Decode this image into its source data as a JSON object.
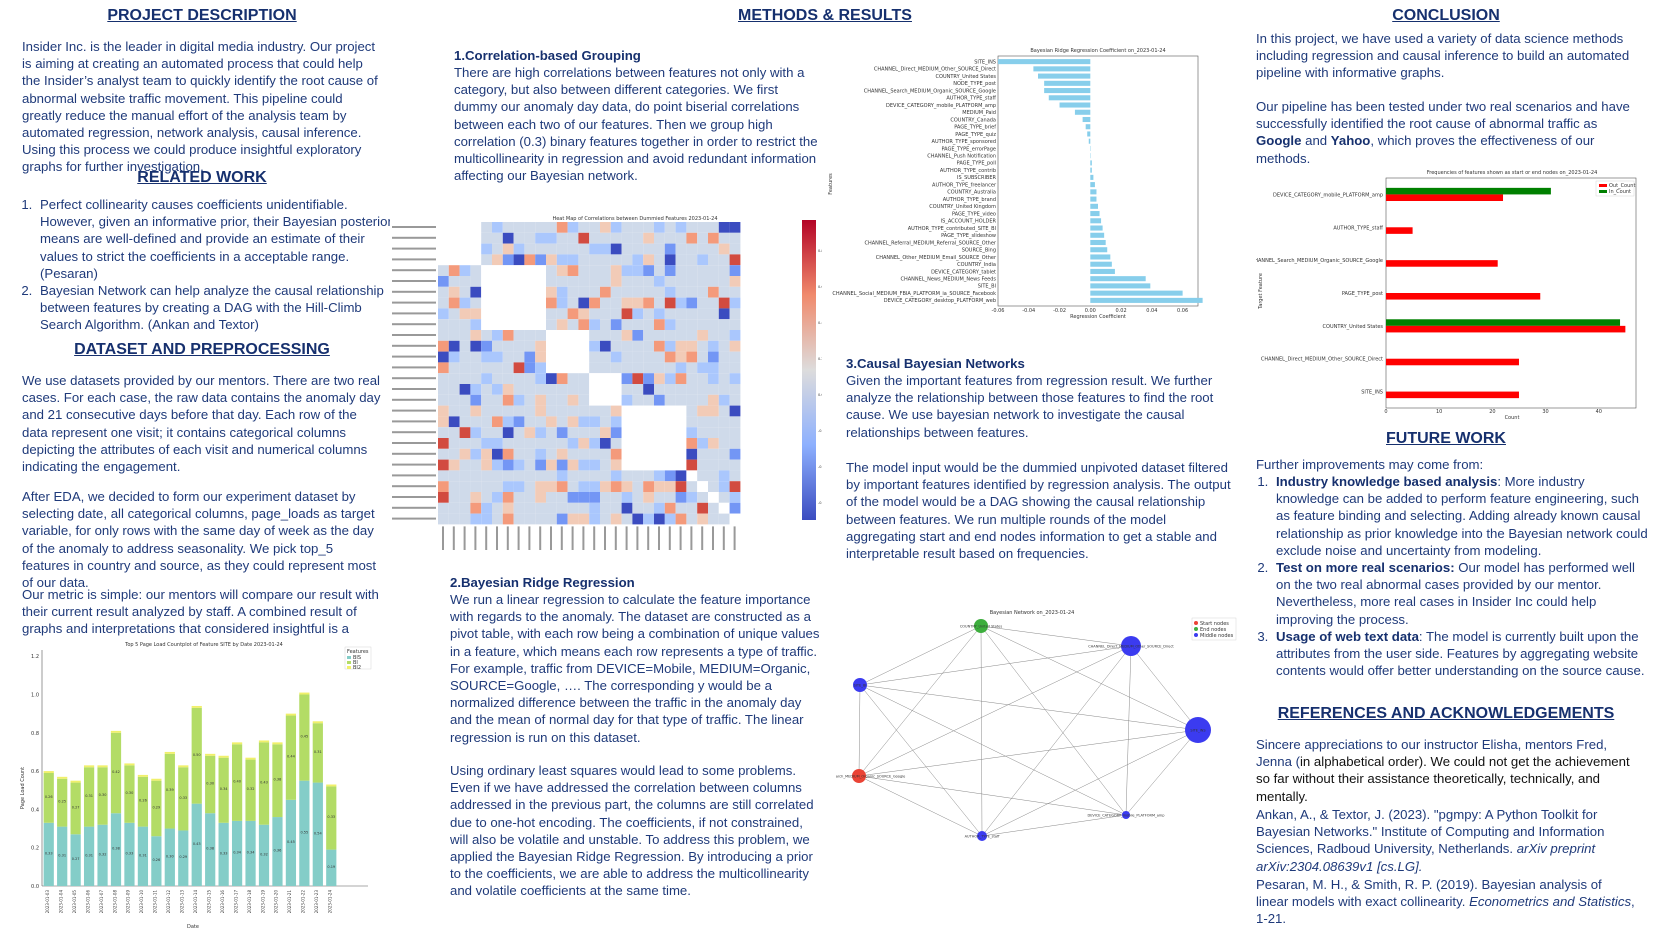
{
  "sections": {
    "project_title": "PROJECT DESCRIPTION",
    "project_text": "Insider Inc. is the leader in digital media industry. Our project is aiming at creating an automated process that could help the Insider’s analyst team to quickly identify the root cause of abnormal website traffic movement. This pipeline could greatly reduce the manual effort of the analysis team by automated regression, network analysis, causal inference. Using this process we could produce insightful exploratory graphs for further investigation.",
    "related_title": "RELATED WORK",
    "related_items": [
      "Perfect collinearity causes coefficients unidentifiable. However, given an informative prior, their Bayesian posterior means are well-defined and provide an estimate of their values to strict the coefficients in a acceptable range.(Pesaran)",
      "Bayesian Network can help analyze the causal relationship between features by creating a DAG with the Hill-Climb Search Algorithm. (Ankan and Textor)"
    ],
    "dataset_title": "DATASET AND PREPROCESSING",
    "dataset_p1": "We use datasets provided by our mentors. There are two real cases. For each case, the raw data contains the anomaly day and 21 consecutive days before that day. Each row of the data represent one visit; it contains categorical columns depicting the attributes of each visit and numerical columns indicating the engagement.",
    "dataset_p2": "After EDA, we decided to form our experiment dataset by selecting date, all categorical columns, page_loads as target variable, for only rows with the same day of week as the day of the anomaly to address seasonality. We pick top_5 features in country and source, as they could represent most of our data.",
    "dataset_p3": "Our metric is simple: our mentors will compare our result with their current result analyzed by staff. A combined result of graphs and interpretations that considered insightful is a success.",
    "methods_title": "METHODS & RESULTS",
    "m1_title": "1.Correlation-based Grouping",
    "m1_text": "There are high correlations between features not only with a category, but also between different categories. We first dummy our anomaly day data, do point biserial correlations between each two of our features. Then we group high correlation (0.3) binary features together in order to restrict the multicollinearity in regression and avoid redundant information affecting our Bayesian network.",
    "m2_title": "2.Bayesian Ridge Regression",
    "m2_p1": "We run a linear regression to calculate the feature importance with regards to the anomaly. The dataset are constructed as a pivot table, with each row being a combination of unique values in a feature, which means each row represents a type of traffic. For example, traffic from DEVICE=Mobile, MEDIUM=Organic, SOURCE=Google, …. The corresponding y would be a normalized difference between the traffic in the anomaly day and the mean of normal day for that type of traffic. The linear regression is run on this dataset.",
    "m2_p2": "Using ordinary least squares would lead to some problems. Even if we have addressed the correlation between columns addressed in the previous part, the columns are still correlated due to one-hot encoding. The coefficients, if not constrained, will also be volatile and unstable. To address this problem, we applied the Bayesian Ridge Regression. By introducing a prior to the coefficients, we are able to address the multicollinearity and volatile coefficients at the same time.",
    "m3_title": "3.Causal Bayesian Networks",
    "m3_p1": "Given the important features from regression result. We further analyze the relationship between those features to find the root cause. We use bayesian network to investigate the causal relationships between features.",
    "m3_p2": "The model input would be the dummied unpivoted dataset filtered by important features identified by regression analysis. The output of the model would be a DAG showing the causal relationship between features. We run multiple rounds of the model aggregating start and end nodes information to get a stable and interpretable result based on frequencies.",
    "conclusion_title": "CONCLUSION",
    "conclusion_p1": "In this project, we have used a variety of data science methods including regression and causal inference to build an automated pipeline with informative graphs.",
    "conclusion_p2a": "Our pipeline has been tested under two real scenarios and have successfully identified the root cause of abnormal traffic as",
    "conclusion_google": "Google",
    "conclusion_and": "and",
    "conclusion_yahoo": "Yahoo",
    "conclusion_p2b": ", which proves the effectiveness of our methods.",
    "future_title": "FUTURE WORK",
    "future_intro": "Further improvements may come from:",
    "future_items": [
      {
        "bold": "Industry knowledge based analysis",
        "text": ": More industry knowledge can be added to perform feature engineering, such as feature binding and selecting. Adding already known causal relationship as prior knowledge into the Bayesian network could exclude noise and uncertainty from modeling."
      },
      {
        "bold": "Test on more real scenarios:",
        "text": " Our model has performed well on the two real abnormal cases provided by our mentor. Nevertheless, more real cases in Insider Inc could help improving the process."
      },
      {
        "bold": "Usage of web text data",
        "text": ": The model is currently built upon the attributes from the user side. Features by aggregating website contents would offer better understanding on the source cause."
      }
    ],
    "refs_title": "REFERENCES AND ACKNOWLEDGEMENTS",
    "refs_ack_a": "Sincere appreciations to our instructor Elisha, mentors Fred, Jenna (",
    "refs_ack_b": "in alphabetical order). We could not get the achievement so far without their assistance theoretically, technically, and mentally.",
    "ref1a": "Ankan, A., & Textor, J. (2023). \"pgmpy: A Python Toolkit for Bayesian Networks.\" Institute of Computing and Information Sciences, Radboud University, Netherlands.",
    "ref1b": "arXiv preprint arXiv:2304.08639v1 [cs.LG].",
    "ref2a": "Pesaran, M. H., & Smith, R. P. (2019). Bayesian analysis of linear models with exact collinearity.",
    "ref2b": "Econometrics and Statistics",
    "ref2c": ", 1-21."
  },
  "chart_data": [
    {
      "type": "bar",
      "title": "Top 5 Page Load Countplot of Feature SITE by Date 2023-01-24",
      "xlabel": "Date",
      "ylabel": "Page Load Count",
      "stacked": true,
      "legend_title": "Features",
      "categories": [
        "2023-01-03",
        "2023-01-04",
        "2023-01-05",
        "2023-01-06",
        "2023-01-07",
        "2023-01-08",
        "2023-01-09",
        "2023-01-10",
        "2023-01-11",
        "2023-01-12",
        "2023-01-13",
        "2023-01-14",
        "2023-01-15",
        "2023-01-16",
        "2023-01-17",
        "2023-01-18",
        "2023-01-19",
        "2023-01-20",
        "2023-01-21",
        "2023-01-22",
        "2023-01-23",
        "2023-01-24"
      ],
      "series": [
        {
          "name": "BIS",
          "color": "#84cdc8",
          "values": [
            0.33,
            0.31,
            0.27,
            0.31,
            0.32,
            0.38,
            0.33,
            0.31,
            0.26,
            0.3,
            0.29,
            0.43,
            0.38,
            0.33,
            0.34,
            0.34,
            0.32,
            0.36,
            0.45,
            0.55,
            0.54,
            0.19
          ]
        },
        {
          "name": "BI",
          "color": "#b3dc66",
          "values": [
            0.26,
            0.25,
            0.27,
            0.31,
            0.3,
            0.42,
            0.3,
            0.26,
            0.29,
            0.39,
            0.33,
            0.5,
            0.3,
            0.34,
            0.4,
            0.32,
            0.43,
            0.38,
            0.44,
            0.45,
            0.31,
            0.33
          ]
        },
        {
          "name": "BI2",
          "color": "#f0f06b",
          "values": [
            0.01,
            0.01,
            0.01,
            0.01,
            0.01,
            0.01,
            0.01,
            0.01,
            0.01,
            0.01,
            0.01,
            0.01,
            0.01,
            0.01,
            0.01,
            0.01,
            0.01,
            0.01,
            0.01,
            0.01,
            0.01,
            0.01
          ]
        }
      ],
      "ylim": [
        0,
        1.0
      ],
      "yticks": [
        "0.0",
        "0.2",
        "0.4",
        "0.6",
        "0.8",
        "1.0",
        "1.2"
      ]
    },
    {
      "type": "heatmap",
      "title": "Heat Map of Correlations between Dummied Features 2023-01-24",
      "description_groups": 5
    },
    {
      "type": "bar",
      "orientation": "horizontal",
      "title": "Bayesian Ridge Regression Coefficient on_2023-01-24",
      "xlabel": "Regression Coefficient",
      "ylabel": "Features",
      "xlim": [
        -0.06,
        0.07
      ],
      "xticks": [
        "-0.06",
        "-0.04",
        "-0.02",
        "0.00",
        "0.02",
        "0.04",
        "0.06"
      ],
      "categories": [
        "SITE_INS",
        "CHANNEL_Direct_MEDIUM_Other_SOURCE_Direct",
        "COUNTRY_United States",
        "NODE_TYPE_post",
        "CHANNEL_Search_MEDIUM_Organic_SOURCE_Google",
        "AUTHOR_TYPE_staff",
        "DEVICE_CATEGORY_mobile_PLATFORM_amp",
        "MEDIUM_Paid",
        "COUNTRY_Canada",
        "PAGE_TYPE_brief",
        "PAGE_TYPE_quiz",
        "AUTHOR_TYPE_sponsored",
        "PAGE_TYPE_errorPage",
        "CHANNEL_Push Notification",
        "PAGE_TYPE_poll",
        "AUTHOR_TYPE_contrib",
        "IS_SUBSCRIBER",
        "AUTHOR_TYPE_freelancer",
        "COUNTRY_Australia",
        "AUTHOR_TYPE_brand",
        "COUNTRY_United Kingdom",
        "PAGE_TYPE_video",
        "IS_ACCOUNT_HOLDER",
        "AUTHOR_TYPE_contributed_SITE_BI",
        "PAGE_TYPE_slideshow",
        "CHANNEL_Referral_MEDIUM_Referral_SOURCE_Other",
        "SOURCE_Bing",
        "CHANNEL_Other_MEDIUM_Email_SOURCE_Other",
        "COUNTRY_India",
        "DEVICE_CATEGORY_tablet",
        "CHANNEL_News_MEDIUM_News Feeds",
        "SITE_BI",
        "CHANNEL_Social_MEDIUM_FBIA_PLATFORM_ia_SOURCE_Facebook",
        "DEVICE_CATEGORY_desktop_PLATFORM_web"
      ],
      "values": [
        -0.06,
        -0.037,
        -0.034,
        -0.03,
        -0.03,
        -0.027,
        -0.02,
        -0.01,
        -0.005,
        -0.003,
        -0.002,
        -0.001,
        0.0,
        0.0,
        0.001,
        0.001,
        0.002,
        0.003,
        0.004,
        0.004,
        0.005,
        0.006,
        0.007,
        0.008,
        0.009,
        0.01,
        0.011,
        0.013,
        0.014,
        0.016,
        0.036,
        0.039,
        0.06,
        0.073
      ]
    },
    {
      "type": "bar",
      "orientation": "horizontal",
      "title": "Frequencies of features shown as start or end nodes on_2023-01-24",
      "xlabel": "Count",
      "ylabel": "Target Feature",
      "xlim": [
        0,
        47
      ],
      "xticks": [
        "0",
        "10",
        "20",
        "30",
        "40"
      ],
      "categories": [
        "DEVICE_CATEGORY_mobile_PLATFORM_amp",
        "AUTHOR_TYPE_staff",
        "CHANNEL_Search_MEDIUM_Organic_SOURCE_Google",
        "PAGE_TYPE_post",
        "COUNTRY_United States",
        "CHANNEL_Direct_MEDIUM_Other_SOURCE_Direct",
        "SITE_INS"
      ],
      "series": [
        {
          "name": "Out_Count",
          "color": "#ff0000",
          "values": [
            22,
            5,
            21,
            29,
            45,
            25,
            25
          ]
        },
        {
          "name": "In_Count",
          "color": "#008000",
          "values": [
            31,
            0,
            0,
            0,
            44,
            0,
            0
          ]
        }
      ]
    }
  ],
  "network": {
    "title": "Bayesian Network on_2023-01-24",
    "legend": [
      {
        "label": "Start nodes",
        "color": "#ea4335"
      },
      {
        "label": "End nodes",
        "color": "#3dae3d"
      },
      {
        "label": "Middle nodes",
        "color": "#3b3bf0"
      }
    ],
    "nodes": [
      {
        "label": "COUNTRY_United States",
        "kind": "end"
      },
      {
        "label": "CHANNEL_Direct_MEDIUM_Other_SOURCE_Direct",
        "kind": "middle"
      },
      {
        "label": "SITE_INS",
        "kind": "middle"
      },
      {
        "label": "SITE_BI",
        "kind": "middle"
      },
      {
        "label": "CHANNEL_Search_MEDIUM_Organic_SOURCE_Google",
        "kind": "start"
      },
      {
        "label": "AUTHOR_TYPE_staff",
        "kind": "middle"
      },
      {
        "label": "DEVICE_CATEGORY_mobile_PLATFORM_amp",
        "kind": "middle"
      }
    ]
  },
  "heatmap_colorbar": [
    "0.8",
    "0.6",
    "0.4",
    "0.2",
    "0.0",
    "-0.2",
    "-0.4",
    "-0.6"
  ]
}
